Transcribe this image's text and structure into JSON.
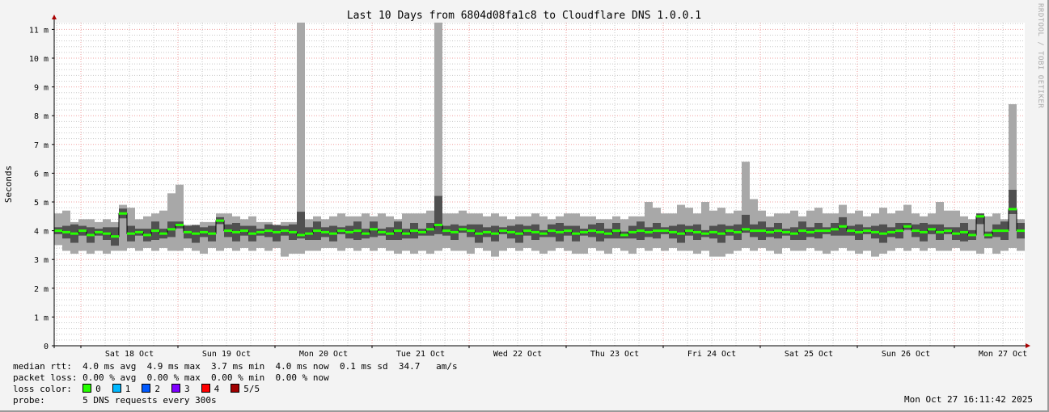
{
  "chart_data": {
    "type": "area",
    "title": "Last 10 Days from 6804d08fa1c8 to Cloudflare DNS 1.0.0.1",
    "ylabel": "Seconds",
    "xlabel": "",
    "ylim": [
      0,
      11.2
    ],
    "y_unit": "ms",
    "y_ticks": [
      {
        "value": 0,
        "label": "0"
      },
      {
        "value": 1,
        "label": "1 m"
      },
      {
        "value": 2,
        "label": "2 m"
      },
      {
        "value": 3,
        "label": "3 m"
      },
      {
        "value": 4,
        "label": "4 m"
      },
      {
        "value": 5,
        "label": "5 m"
      },
      {
        "value": 6,
        "label": "6 m"
      },
      {
        "value": 7,
        "label": "7 m"
      },
      {
        "value": 8,
        "label": "8 m"
      },
      {
        "value": 9,
        "label": "9 m"
      },
      {
        "value": 10,
        "label": "10 m"
      },
      {
        "value": 11,
        "label": "11 m"
      }
    ],
    "x_ticks": [
      "Sat 18 Oct",
      "Sun 19 Oct",
      "Mon 20 Oct",
      "Tue 21 Oct",
      "Wed 22 Oct",
      "Thu 23 Oct",
      "Fri 24 Oct",
      "Sat 25 Oct",
      "Sun 26 Oct",
      "Mon 27 Oct"
    ],
    "x_range": [
      "Fri 17 Oct 17:30",
      "Mon 27 Oct 17:30"
    ],
    "bin_hours": 2,
    "grid": true,
    "colors": {
      "smoke": "#a8a8a8",
      "smoke_dark": "#505050",
      "median": "#26ff00",
      "major_grid": "#f0a0a0",
      "minor_grid": "#c8c8c8"
    },
    "series": {
      "median": [
        4.0,
        3.95,
        3.9,
        4.0,
        3.85,
        3.95,
        3.9,
        3.8,
        4.6,
        3.9,
        3.95,
        3.85,
        4.0,
        3.9,
        4.05,
        4.2,
        3.95,
        3.9,
        3.95,
        3.9,
        4.35,
        4.0,
        3.95,
        4.0,
        3.9,
        3.95,
        4.0,
        3.95,
        4.0,
        3.95,
        3.85,
        3.9,
        4.0,
        3.95,
        3.9,
        4.0,
        3.95,
        4.0,
        3.9,
        4.05,
        3.95,
        3.9,
        4.0,
        3.9,
        4.0,
        3.95,
        4.05,
        4.2,
        4.0,
        3.95,
        4.05,
        4.0,
        3.9,
        3.95,
        3.9,
        4.0,
        3.95,
        3.9,
        4.0,
        3.95,
        3.9,
        4.0,
        3.95,
        4.0,
        3.9,
        3.95,
        4.0,
        3.95,
        3.9,
        4.0,
        3.85,
        3.95,
        4.0,
        3.95,
        4.0,
        4.0,
        3.95,
        3.9,
        4.0,
        3.95,
        3.9,
        3.95,
        3.9,
        4.0,
        3.95,
        4.05,
        4.0,
        4.0,
        3.95,
        4.0,
        3.95,
        3.9,
        4.0,
        3.95,
        4.0,
        4.0,
        4.05,
        4.15,
        4.0,
        3.95,
        4.0,
        3.95,
        3.9,
        3.95,
        4.0,
        4.15,
        4.0,
        3.95,
        4.05,
        3.95,
        4.0,
        3.9,
        3.95,
        3.85,
        4.5,
        3.85,
        4.0,
        4.0,
        4.75,
        4.0
      ],
      "min": [
        3.5,
        3.3,
        3.2,
        3.3,
        3.2,
        3.3,
        3.2,
        3.3,
        3.3,
        3.4,
        3.3,
        3.4,
        3.3,
        3.4,
        3.3,
        3.3,
        3.4,
        3.3,
        3.2,
        3.4,
        3.3,
        3.4,
        3.3,
        3.4,
        3.3,
        3.4,
        3.3,
        3.4,
        3.1,
        3.2,
        3.2,
        3.3,
        3.3,
        3.4,
        3.4,
        3.3,
        3.4,
        3.3,
        3.4,
        3.3,
        3.4,
        3.3,
        3.2,
        3.3,
        3.2,
        3.3,
        3.2,
        3.3,
        3.4,
        3.3,
        3.3,
        3.2,
        3.4,
        3.3,
        3.1,
        3.3,
        3.4,
        3.3,
        3.4,
        3.3,
        3.2,
        3.3,
        3.4,
        3.3,
        3.2,
        3.2,
        3.4,
        3.3,
        3.2,
        3.4,
        3.3,
        3.2,
        3.4,
        3.3,
        3.4,
        3.3,
        3.4,
        3.3,
        3.3,
        3.2,
        3.3,
        3.1,
        3.1,
        3.2,
        3.3,
        3.4,
        3.3,
        3.4,
        3.3,
        3.2,
        3.4,
        3.3,
        3.3,
        3.4,
        3.3,
        3.2,
        3.3,
        3.4,
        3.3,
        3.2,
        3.3,
        3.1,
        3.2,
        3.3,
        3.4,
        3.3,
        3.4,
        3.3,
        3.4,
        3.3,
        3.3,
        3.4,
        3.3,
        3.3,
        3.2,
        3.4,
        3.2,
        3.3,
        3.4,
        3.3
      ],
      "max": [
        4.6,
        4.7,
        4.3,
        4.4,
        4.4,
        4.3,
        4.4,
        4.3,
        4.9,
        4.8,
        4.4,
        4.5,
        4.6,
        4.7,
        5.3,
        5.6,
        4.2,
        4.2,
        4.3,
        4.3,
        4.6,
        4.6,
        4.5,
        4.4,
        4.5,
        4.3,
        4.3,
        4.2,
        4.3,
        4.3,
        11.5,
        4.4,
        4.5,
        4.4,
        4.5,
        4.6,
        4.5,
        4.5,
        4.6,
        4.5,
        4.6,
        4.5,
        4.4,
        4.6,
        4.6,
        4.6,
        4.7,
        11.5,
        4.6,
        4.6,
        4.7,
        4.6,
        4.6,
        4.5,
        4.6,
        4.5,
        4.4,
        4.5,
        4.5,
        4.6,
        4.5,
        4.4,
        4.5,
        4.6,
        4.6,
        4.5,
        4.5,
        4.4,
        4.4,
        4.5,
        4.4,
        4.5,
        4.5,
        5.0,
        4.8,
        4.6,
        4.6,
        4.9,
        4.8,
        4.6,
        5.0,
        4.7,
        4.8,
        4.6,
        4.7,
        6.4,
        5.1,
        4.7,
        4.5,
        4.6,
        4.6,
        4.7,
        4.5,
        4.7,
        4.8,
        4.6,
        4.6,
        4.9,
        4.6,
        4.7,
        4.5,
        4.6,
        4.8,
        4.6,
        4.7,
        4.9,
        4.6,
        4.5,
        4.6,
        5.0,
        4.7,
        4.7,
        4.5,
        4.4,
        4.6,
        4.5,
        4.6,
        4.4,
        8.4,
        4.4
      ]
    }
  },
  "legend": {
    "median_rtt": "median rtt:  4.0 ms avg  4.9 ms max  3.7 ms min  4.0 ms now  0.1 ms sd  34.7   am/s",
    "packet_loss": "packet loss: 0.00 % avg  0.00 % max  0.00 % min  0.00 % now",
    "loss_color_label": "loss color:  ",
    "loss_colors": [
      {
        "label": "0",
        "color": "#26ff00"
      },
      {
        "label": "1",
        "color": "#00b8ff"
      },
      {
        "label": "2",
        "color": "#0059ff"
      },
      {
        "label": "3",
        "color": "#7e00ff"
      },
      {
        "label": "4",
        "color": "#ff0000"
      },
      {
        "label": "5/5",
        "color": "#a10000"
      }
    ],
    "probe": "probe:       5 DNS requests every 300s",
    "timestamp": "Mon Oct 27 16:11:42 2025"
  },
  "credit": "RRDTOOL / TOBI OETIKER"
}
